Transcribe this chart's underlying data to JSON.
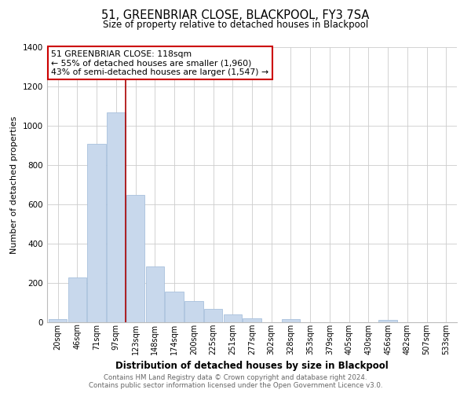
{
  "title1": "51, GREENBRIAR CLOSE, BLACKPOOL, FY3 7SA",
  "title2": "Size of property relative to detached houses in Blackpool",
  "xlabel": "Distribution of detached houses by size in Blackpool",
  "ylabel": "Number of detached properties",
  "bar_labels": [
    "20sqm",
    "46sqm",
    "71sqm",
    "97sqm",
    "123sqm",
    "148sqm",
    "174sqm",
    "200sqm",
    "225sqm",
    "251sqm",
    "277sqm",
    "302sqm",
    "328sqm",
    "353sqm",
    "379sqm",
    "405sqm",
    "430sqm",
    "456sqm",
    "482sqm",
    "507sqm",
    "533sqm"
  ],
  "bar_values": [
    15,
    228,
    910,
    1070,
    650,
    285,
    157,
    107,
    70,
    40,
    22,
    0,
    18,
    0,
    0,
    0,
    0,
    12,
    0,
    0,
    0
  ],
  "bar_color": "#c8d8ec",
  "bar_edge_color": "#a8c0dc",
  "vline_color": "#aa0000",
  "annotation_title": "51 GREENBRIAR CLOSE: 118sqm",
  "annotation_line1": "← 55% of detached houses are smaller (1,960)",
  "annotation_line2": "43% of semi-detached houses are larger (1,547) →",
  "annotation_box_color": "#ffffff",
  "annotation_box_edge": "#cc0000",
  "ylim": [
    0,
    1400
  ],
  "yticks": [
    0,
    200,
    400,
    600,
    800,
    1000,
    1200,
    1400
  ],
  "footer1": "Contains HM Land Registry data © Crown copyright and database right 2024.",
  "footer2": "Contains public sector information licensed under the Open Government Licence v3.0.",
  "background_color": "#ffffff",
  "grid_color": "#cccccc"
}
